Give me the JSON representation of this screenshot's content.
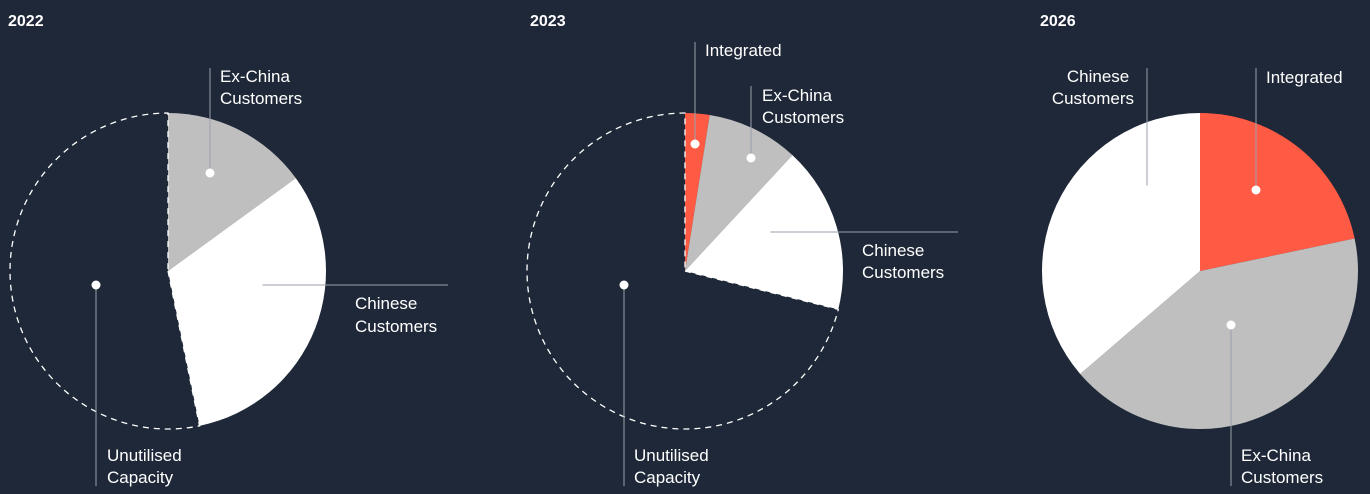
{
  "colors": {
    "background": "#1f2838",
    "integrated": "#ff5a44",
    "ex_china": "#bfbfbf",
    "chinese": "#ffffff",
    "unutilised_outline": "#ffffff"
  },
  "chart_data": [
    {
      "type": "pie",
      "title": "2022",
      "slices": [
        {
          "key": "ex_china",
          "label": [
            "Ex-China",
            "Customers"
          ],
          "value": 0.15
        },
        {
          "key": "chinese",
          "label": [
            "Chinese",
            "Customers"
          ],
          "value": 0.318
        },
        {
          "key": "unutilised",
          "label": [
            "Unutilised",
            "Capacity"
          ],
          "value": 0.532
        }
      ]
    },
    {
      "type": "pie",
      "title": "2023",
      "slices": [
        {
          "key": "integrated",
          "label": [
            "Integrated"
          ],
          "value": 0.025
        },
        {
          "key": "ex_china",
          "label": [
            "Ex-China",
            "Customers"
          ],
          "value": 0.094
        },
        {
          "key": "chinese",
          "label": [
            "Chinese",
            "Customers"
          ],
          "value": 0.17
        },
        {
          "key": "unutilised",
          "label": [
            "Unutilised",
            "Capacity"
          ],
          "value": 0.711
        }
      ]
    },
    {
      "type": "pie",
      "title": "2026",
      "slices": [
        {
          "key": "integrated",
          "label": [
            "Integrated"
          ],
          "value": 0.217
        },
        {
          "key": "ex_china",
          "label": [
            "Ex-China",
            "Customers"
          ],
          "value": 0.42
        },
        {
          "key": "chinese",
          "label": [
            "Chinese",
            "Customers"
          ],
          "value": 0.363
        }
      ]
    }
  ]
}
